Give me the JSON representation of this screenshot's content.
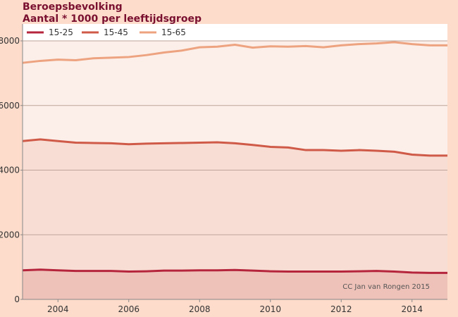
{
  "colors": {
    "page_bg": "#fddccb",
    "title": "#7a1030",
    "band_15_65": "#fcefe9",
    "band_15_45": "#f8ddd4",
    "band_15_25": "#efc2b9",
    "line_15_25": "#b5263d",
    "line_15_45": "#cf5a48",
    "line_15_65": "#eda380",
    "grid": "#bda59a"
  },
  "chart_data": {
    "type": "area",
    "title": "Beroepsbevolking",
    "subtitle": "Aantal * 1000 per leeftijdsgroep",
    "xlabel": "",
    "ylabel": "",
    "xlim": [
      2003,
      2015
    ],
    "ylim": [
      0,
      8000
    ],
    "x_ticks": [
      2004,
      2006,
      2008,
      2010,
      2012,
      2014
    ],
    "y_ticks": [
      0,
      2000,
      4000,
      6000,
      8000
    ],
    "grid": true,
    "legend_position": "top",
    "annotation": "CC Jan van Rongen 2015",
    "x": [
      2003.0,
      2003.5,
      2004.0,
      2004.5,
      2005.0,
      2005.5,
      2006.0,
      2006.5,
      2007.0,
      2007.5,
      2008.0,
      2008.5,
      2009.0,
      2009.5,
      2010.0,
      2010.5,
      2011.0,
      2011.5,
      2012.0,
      2012.5,
      2013.0,
      2013.5,
      2014.0,
      2014.5,
      2014.9
    ],
    "series": [
      {
        "name": "15-25",
        "values": [
          900,
          920,
          900,
          880,
          880,
          880,
          860,
          870,
          890,
          890,
          900,
          900,
          910,
          890,
          870,
          860,
          860,
          860,
          860,
          870,
          880,
          860,
          830,
          820,
          820
        ]
      },
      {
        "name": "15-45",
        "values": [
          4900,
          4950,
          4900,
          4850,
          4840,
          4830,
          4800,
          4820,
          4830,
          4840,
          4850,
          4860,
          4830,
          4780,
          4720,
          4700,
          4620,
          4620,
          4600,
          4620,
          4600,
          4570,
          4480,
          4450,
          4450
        ]
      },
      {
        "name": "15-65",
        "values": [
          7320,
          7380,
          7420,
          7400,
          7460,
          7480,
          7500,
          7560,
          7640,
          7700,
          7800,
          7820,
          7880,
          7790,
          7830,
          7820,
          7840,
          7800,
          7860,
          7900,
          7920,
          7960,
          7900,
          7860,
          7860
        ]
      }
    ]
  }
}
